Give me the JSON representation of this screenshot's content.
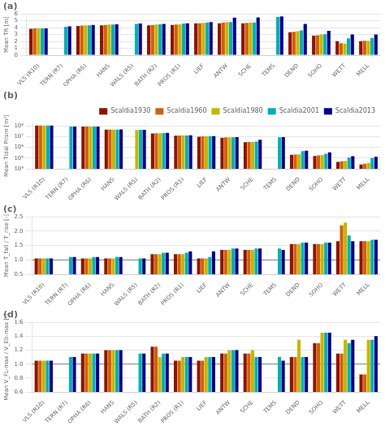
{
  "chart_data": [
    {
      "type": "bar",
      "title": "(a)",
      "ylabel": "Mean TR [m]",
      "categories": [
        "VLS (R10)",
        "TERN (R7)",
        "OPHA (R6)",
        "HANS",
        "WALS (R5)",
        "BATH (R2)",
        "PROS (R1)",
        "LIEF",
        "ANTW",
        "SCHE",
        "TEMS",
        "DEND",
        "SOHO",
        "WETT",
        "MELL"
      ],
      "series": [
        {
          "color": "#8B1500",
          "values": [
            3.85,
            null,
            4.25,
            4.35,
            null,
            4.35,
            4.4,
            4.65,
            4.65,
            4.65,
            null,
            3.35,
            2.85,
            2.05,
            2.05
          ]
        },
        {
          "color": "#D45F00",
          "values": [
            3.9,
            null,
            4.3,
            4.4,
            null,
            4.4,
            4.45,
            4.65,
            4.75,
            4.7,
            null,
            3.4,
            2.9,
            1.75,
            2.1
          ]
        },
        {
          "color": "#C8B400",
          "values": [
            3.9,
            null,
            4.35,
            4.45,
            null,
            4.45,
            4.5,
            4.7,
            4.8,
            4.75,
            null,
            3.5,
            3.0,
            1.7,
            2.1
          ]
        },
        {
          "color": "#00B0B0",
          "values": [
            3.9,
            4.15,
            4.35,
            4.45,
            4.55,
            4.5,
            4.6,
            4.75,
            4.8,
            4.75,
            5.55,
            3.6,
            3.05,
            2.45,
            2.5
          ]
        },
        {
          "color": "#00008B",
          "values": [
            3.9,
            4.2,
            4.4,
            4.5,
            4.6,
            4.55,
            4.65,
            4.8,
            5.45,
            5.5,
            5.65,
            4.55,
            3.55,
            3.0,
            3.0
          ]
        }
      ],
      "ylim": [
        0,
        6
      ],
      "yticks": [
        0,
        1,
        2,
        3,
        4,
        5,
        6
      ],
      "grid": true
    },
    {
      "type": "bar",
      "title": "(b)",
      "ylabel": "Mean Tidal Prism [m³]",
      "categories": [
        "VLS (R10)",
        "TERN (R7)",
        "OPHA (R6)",
        "HANS",
        "WALS (R5)",
        "BATH (R2)",
        "PROS (R1)",
        "LIEF",
        "ANTW",
        "SCHE",
        "TEMS",
        "DEND",
        "SOHO",
        "WETT",
        "MELL"
      ],
      "series": [
        {
          "name": "Scaldia1930",
          "color": "#8B1500",
          "values": [
            110000000.0,
            null,
            85000000.0,
            45000000.0,
            null,
            20000000.0,
            12000000.0,
            10000000.0,
            8000000.0,
            3000000.0,
            null,
            200000.0,
            160000.0,
            45000.0,
            25000.0
          ]
        },
        {
          "name": "Scaldia1960",
          "color": "#D45F00",
          "values": [
            110000000.0,
            null,
            85000000.0,
            45000000.0,
            null,
            21000000.0,
            12500000.0,
            10500000.0,
            8500000.0,
            3200000.0,
            null,
            210000.0,
            180000.0,
            50000.0,
            30000.0
          ]
        },
        {
          "name": "Scaldia1980",
          "color": "#C8B400",
          "values": [
            110000000.0,
            null,
            86000000.0,
            46000000.0,
            42000000.0,
            21000000.0,
            13000000.0,
            10500000.0,
            8500000.0,
            3100000.0,
            null,
            220000.0,
            190000.0,
            55000.0,
            35000.0
          ]
        },
        {
          "name": "Scaldia2001",
          "color": "#00B0B0",
          "values": [
            110000000.0,
            85000000.0,
            86000000.0,
            46000000.0,
            43000000.0,
            21500000.0,
            13000000.0,
            11000000.0,
            8800000.0,
            3500000.0,
            8500000.0,
            450000.0,
            250000.0,
            110000.0,
            100000.0
          ]
        },
        {
          "name": "Scaldia2013",
          "color": "#00008B",
          "values": [
            110000000.0,
            85000000.0,
            87000000.0,
            47000000.0,
            43000000.0,
            22000000.0,
            13500000.0,
            11000000.0,
            9000000.0,
            5000000.0,
            9000000.0,
            480000.0,
            350000.0,
            150000.0,
            130000.0
          ]
        }
      ],
      "log": "y",
      "ylim": [
        10000,
        200000000
      ],
      "yticks": [
        {
          "value": 10000,
          "label": "10⁴"
        },
        {
          "value": 100000,
          "label": "10⁵"
        },
        {
          "value": 1000000,
          "label": "10⁶"
        },
        {
          "value": 10000000,
          "label": "10⁷"
        },
        {
          "value": 100000000,
          "label": "10⁸"
        }
      ],
      "grid": true,
      "legend": "upper right"
    },
    {
      "type": "bar",
      "title": "(c)",
      "ylabel": "Mean T_fall / T_rise [-]",
      "categories": [
        "VLS (R10)",
        "TERN (R7)",
        "OPHA (R6)",
        "HANS",
        "WALS (R5)",
        "BATH (R2)",
        "PROS (R1)",
        "LIEF",
        "ANTW",
        "SCHE",
        "TEMS",
        "DEND",
        "SOHO",
        "WETT",
        "MELL"
      ],
      "series": [
        {
          "color": "#8B1500",
          "values": [
            1.05,
            null,
            1.05,
            1.05,
            null,
            1.2,
            1.2,
            1.05,
            1.35,
            1.35,
            null,
            1.55,
            1.55,
            1.65,
            1.65
          ]
        },
        {
          "color": "#D45F00",
          "values": [
            1.05,
            null,
            1.05,
            1.05,
            null,
            1.2,
            1.2,
            1.05,
            1.35,
            1.35,
            null,
            1.55,
            1.55,
            2.2,
            1.65
          ]
        },
        {
          "color": "#C8B400",
          "values": [
            1.05,
            null,
            1.05,
            1.05,
            null,
            1.2,
            1.2,
            1.05,
            1.35,
            1.35,
            null,
            1.55,
            1.55,
            2.3,
            1.65
          ]
        },
        {
          "color": "#00B0B0",
          "values": [
            1.05,
            1.1,
            1.1,
            1.1,
            1.05,
            1.25,
            1.25,
            1.1,
            1.4,
            1.4,
            1.4,
            1.6,
            1.6,
            1.85,
            1.7
          ]
        },
        {
          "color": "#00008B",
          "values": [
            1.05,
            1.1,
            1.1,
            1.1,
            1.05,
            1.25,
            1.3,
            1.3,
            1.4,
            1.4,
            1.35,
            1.6,
            1.6,
            1.65,
            1.7
          ]
        }
      ],
      "ylim": [
        0.5,
        2.5
      ],
      "yticks": [
        0.5,
        {
          "value": 1.0,
          "label": "1.0"
        },
        1.5,
        {
          "value": 2.0,
          "label": "2.0"
        },
        2.5
      ],
      "hline": 1.0,
      "grid": true
    },
    {
      "type": "bar",
      "title": "(d)",
      "ylabel": "Mean V_FL-max / V_Eb-max [-]",
      "categories": [
        "VLS (R10)",
        "TERN (R7)",
        "OPHA (R6)",
        "HANS",
        "WALS (R5)",
        "BATH (R2)",
        "PROS (R1)",
        "LIEF",
        "ANTW",
        "SCHE",
        "TEMS",
        "DEND",
        "SOHO",
        "WETT",
        "MELL"
      ],
      "series": [
        {
          "color": "#8B1500",
          "values": [
            1.05,
            null,
            1.15,
            1.2,
            null,
            1.25,
            1.05,
            1.05,
            1.15,
            1.15,
            null,
            1.1,
            1.3,
            1.15,
            0.85
          ]
        },
        {
          "color": "#D45F00",
          "values": [
            1.05,
            null,
            1.15,
            1.2,
            null,
            1.25,
            1.05,
            1.05,
            1.15,
            1.15,
            null,
            1.1,
            1.3,
            1.15,
            0.85
          ]
        },
        {
          "color": "#C8B400",
          "values": [
            1.05,
            null,
            1.15,
            1.2,
            null,
            1.1,
            1.1,
            1.1,
            1.2,
            1.2,
            null,
            1.35,
            1.45,
            1.35,
            1.35
          ]
        },
        {
          "color": "#00B0B0",
          "values": [
            1.05,
            1.1,
            1.15,
            1.2,
            1.15,
            1.15,
            1.1,
            1.1,
            1.2,
            1.1,
            1.1,
            1.1,
            1.45,
            1.3,
            1.35
          ]
        },
        {
          "color": "#00008B",
          "values": [
            1.05,
            1.1,
            1.15,
            1.2,
            1.15,
            1.15,
            1.1,
            1.1,
            1.2,
            1.1,
            1.05,
            1.1,
            1.45,
            1.35,
            1.4
          ]
        }
      ],
      "ylim": [
        0.6,
        1.6
      ],
      "yticks": [
        0.6,
        0.8,
        {
          "value": 1.0,
          "label": "1.0"
        },
        1.2,
        1.4,
        1.6
      ],
      "hline": 1.0,
      "grid": true
    }
  ]
}
